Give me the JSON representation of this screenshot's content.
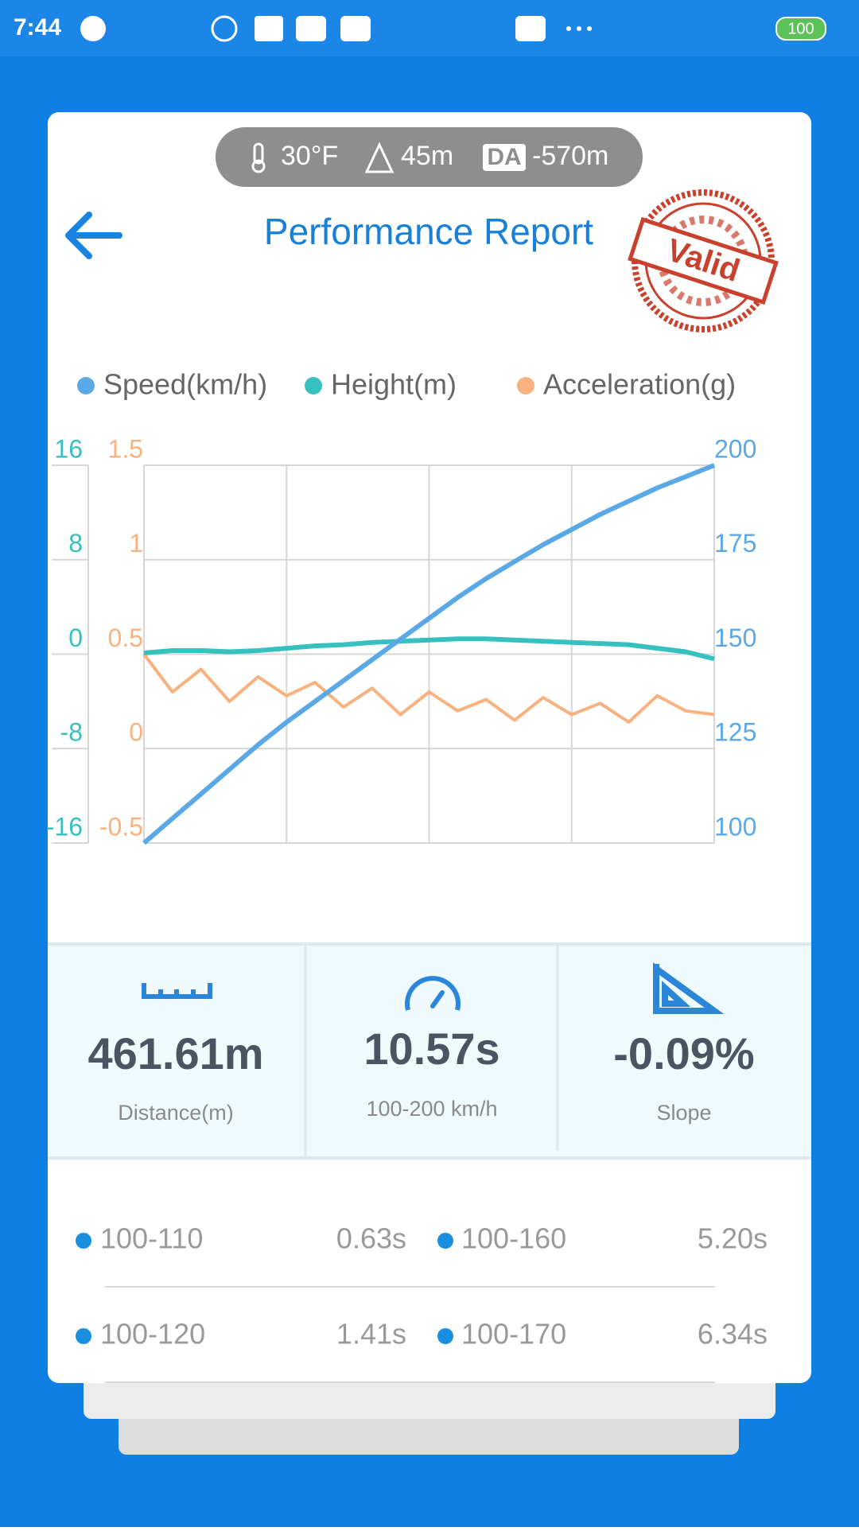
{
  "status_bar": {
    "time": "7:44",
    "battery": "100"
  },
  "conditions": {
    "temperature": "30°F",
    "altitude": "45m",
    "da_label": "DA",
    "density_altitude": "-570m"
  },
  "header": {
    "title": "Performance Report",
    "stamp": "Valid"
  },
  "chart_data": {
    "type": "line",
    "series": [
      {
        "name": "Speed(km/h)",
        "color": "#5aa9e6",
        "axis": "y2",
        "values": [
          100,
          106.5,
          113,
          119.5,
          126,
          132,
          137.5,
          143,
          148.5,
          154,
          159.5,
          165,
          170,
          174.5,
          179,
          183,
          187,
          190.5,
          194,
          197,
          200
        ]
      },
      {
        "name": "Height(m)",
        "color": "#36c0c0",
        "axis": "y",
        "values": [
          0.1,
          0.3,
          0.3,
          0.2,
          0.3,
          0.5,
          0.7,
          0.8,
          1.0,
          1.1,
          1.2,
          1.3,
          1.3,
          1.2,
          1.1,
          1.0,
          0.9,
          0.8,
          0.5,
          0.2,
          -0.4
        ]
      },
      {
        "name": "Acceleration(g)",
        "color": "#f8b27f",
        "axis": "y3",
        "values": [
          0.5,
          0.3,
          0.42,
          0.25,
          0.38,
          0.28,
          0.35,
          0.22,
          0.32,
          0.18,
          0.3,
          0.2,
          0.26,
          0.15,
          0.27,
          0.18,
          0.24,
          0.14,
          0.28,
          0.2,
          0.18
        ]
      }
    ],
    "ylim": [
      -16,
      16
    ],
    "yticks": [
      -16,
      -8,
      0,
      8,
      16
    ],
    "y2lim": [
      100,
      200
    ],
    "y2ticks": [
      100,
      125,
      150,
      175,
      200
    ],
    "y3lim": [
      -0.5,
      1.5
    ],
    "y3ticks": [
      -0.5,
      0,
      0.5,
      1,
      1.5
    ],
    "grid": true
  },
  "stats": [
    {
      "value": "461.61m",
      "label": "Distance(m)"
    },
    {
      "value": "10.57s",
      "label": "100-200 km/h"
    },
    {
      "value": "-0.09%",
      "label": "Slope"
    }
  ],
  "splits": {
    "rows": [
      [
        "100-110",
        "0.63s",
        "100-160",
        "5.20s"
      ],
      [
        "100-120",
        "1.41s",
        "100-170",
        "6.34s"
      ]
    ]
  }
}
